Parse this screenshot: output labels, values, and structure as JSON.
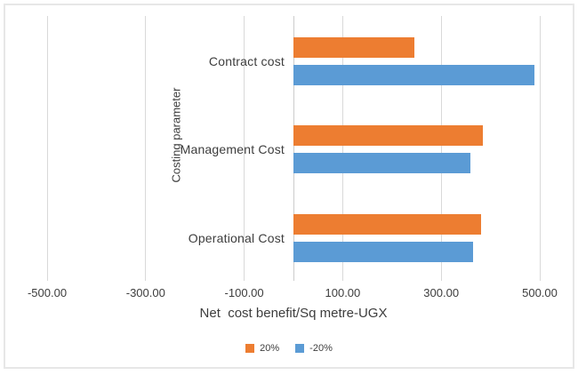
{
  "figure": {
    "background_color": "#ffffff",
    "border_color": "#e7e7e7"
  },
  "chart_data": {
    "type": "bar",
    "orientation": "horizontal",
    "title": "",
    "categories": [
      "Contract cost",
      "Management Cost",
      "Operational Cost"
    ],
    "series": [
      {
        "name": "20%",
        "color": "#ED7D31",
        "values": [
          245,
          385,
          380
        ]
      },
      {
        "name": "-20%",
        "color": "#5B9BD5",
        "values": [
          490,
          360,
          365
        ]
      }
    ],
    "xlabel": "Net  cost benefit/Sq metre-UGX",
    "ylabel": "Costing parameter",
    "xlim": [
      -500,
      500
    ],
    "xticks": [
      -500,
      -300,
      -100,
      100,
      300,
      500
    ],
    "xtick_labels": [
      "-500.00",
      "-300.00",
      "-100.00",
      "100.00",
      "300.00",
      "500.00"
    ],
    "grid": true,
    "gridline_color": "#d9d9d9",
    "legend_position": "bottom"
  }
}
